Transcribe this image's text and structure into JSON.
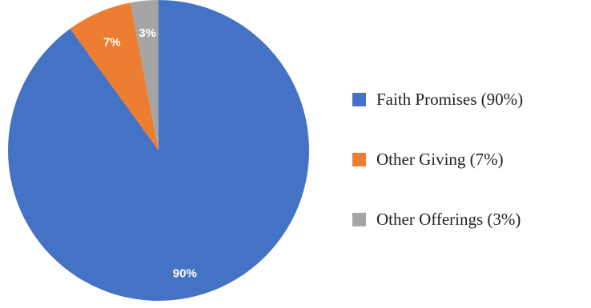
{
  "chart_data": {
    "type": "pie",
    "slices": [
      {
        "label": "Faith Promises (90%)",
        "value": 90,
        "data_label": "90%",
        "color": "#4472c4"
      },
      {
        "label": "Other Giving (7%)",
        "value": 7,
        "data_label": "7%",
        "color": "#ed7d31"
      },
      {
        "label": "Other Offerings (3%)",
        "value": 3,
        "data_label": "3%",
        "color": "#a5a5a5"
      }
    ],
    "start_angle_deg": 0,
    "direction": "clockwise",
    "legend_position": "right",
    "title": ""
  }
}
